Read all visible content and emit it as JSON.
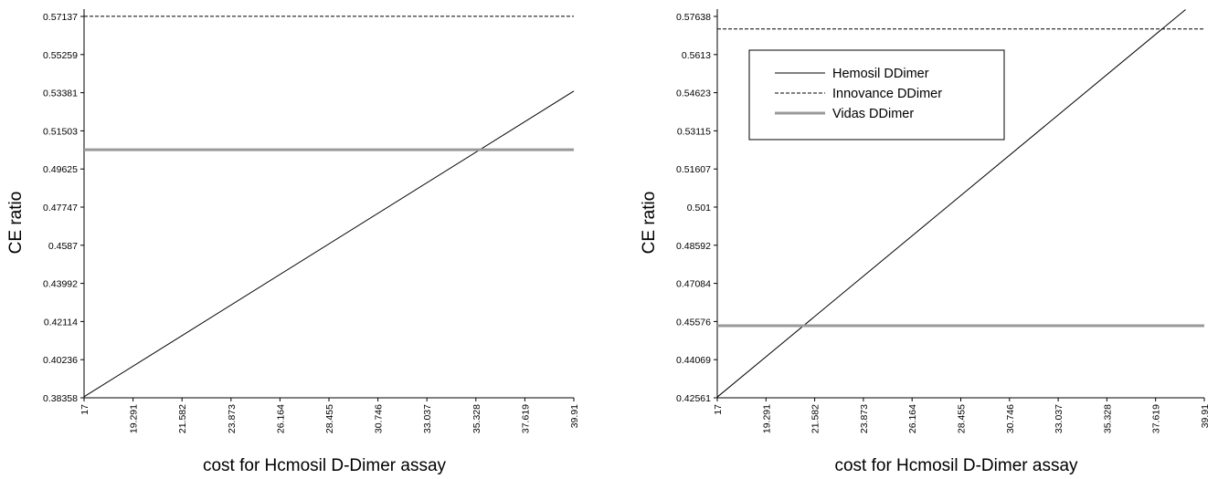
{
  "chart_data": [
    {
      "type": "line",
      "title": "",
      "xlabel": "cost for Hcmosil D-Dimer assay",
      "ylabel": "CE ratio",
      "x_ticks": [
        "17",
        "19.291",
        "21.582",
        "23.873",
        "26.164",
        "28.455",
        "30.746",
        "33.037",
        "35.328",
        "37.619",
        "39.91"
      ],
      "y_ticks": [
        "0.38358",
        "0.40236",
        "0.42114",
        "0.43992",
        "0.4587",
        "0.47747",
        "0.49625",
        "0.51503",
        "0.53381",
        "0.55259",
        "0.57137"
      ],
      "xlim": [
        17,
        39.91
      ],
      "ylim": [
        0.38358,
        0.57137
      ],
      "grid": false,
      "legend": "none",
      "series": [
        {
          "x": [
            17,
            39.91
          ],
          "y": [
            0.3841,
            0.5346
          ],
          "color": "#000000",
          "width": 1,
          "dash": ""
        },
        {
          "x": [
            17,
            39.91
          ],
          "y": [
            0.5714,
            0.5714
          ],
          "color": "#000000",
          "width": 1,
          "dash": "4 2"
        },
        {
          "x": [
            17,
            39.91
          ],
          "y": [
            0.5057,
            0.5057
          ],
          "color": "#999999",
          "width": 3,
          "dash": ""
        }
      ]
    },
    {
      "type": "line",
      "title": "",
      "xlabel": "cost for Hcmosil D-Dimer assay",
      "ylabel": "CE ratio",
      "x_ticks": [
        "17",
        "19.291",
        "21.582",
        "23.873",
        "26.164",
        "28.455",
        "30.746",
        "33.037",
        "35.328",
        "37.619",
        "39.91"
      ],
      "y_ticks": [
        "0.42561",
        "0.44069",
        "0.45576",
        "0.47084",
        "0.48592",
        "0.501",
        "0.51607",
        "0.53115",
        "0.54623",
        "0.5613",
        "0.57638"
      ],
      "xlim": [
        17,
        39.91
      ],
      "ylim": [
        0.42561,
        0.57638
      ],
      "grid": false,
      "legend": "top-left",
      "series": [
        {
          "name": "Hemosil DDimer",
          "x": [
            17,
            39.03
          ],
          "y": [
            0.4259,
            0.5791
          ],
          "color": "#000000",
          "width": 1,
          "dash": ""
        },
        {
          "name": "Innovance DDimer",
          "x": [
            17,
            39.91
          ],
          "y": [
            0.5714,
            0.5714
          ],
          "color": "#000000",
          "width": 1,
          "dash": "4 2"
        },
        {
          "name": "Vidas DDimer",
          "x": [
            17,
            39.91
          ],
          "y": [
            0.4541,
            0.4541
          ],
          "color": "#999999",
          "width": 3,
          "dash": ""
        }
      ]
    }
  ]
}
